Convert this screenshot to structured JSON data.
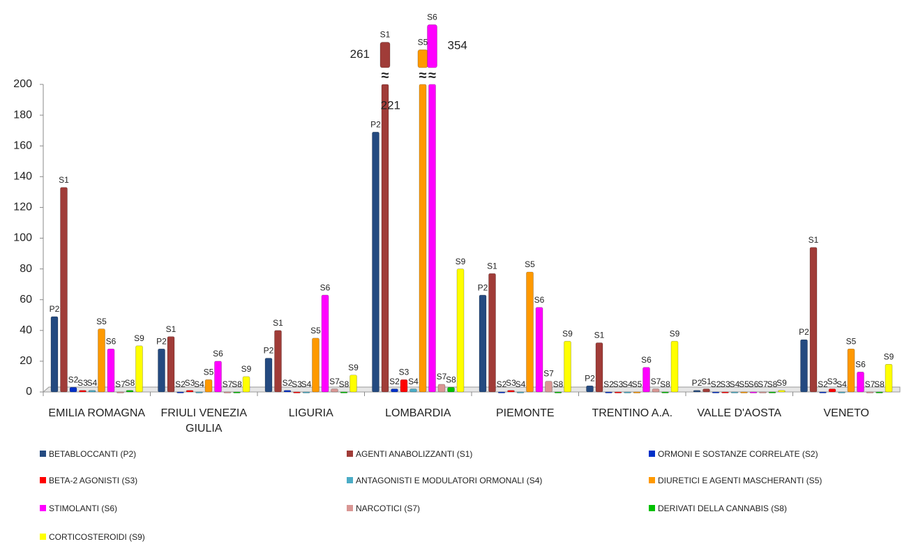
{
  "chart_data": {
    "type": "bar",
    "categories": [
      "EMILIA ROMAGNA",
      "FRIULI VENEZIA GIULIA",
      "LIGURIA",
      "LOMBARDIA",
      "PIEMONTE",
      "TRENTINO A.A.",
      "VALLE D'AOSTA",
      "VENETO"
    ],
    "ylim": [
      0,
      200
    ],
    "yticks": [
      0,
      20,
      40,
      60,
      80,
      100,
      120,
      140,
      160,
      180,
      200
    ],
    "series": [
      {
        "name": "BETABLOCCANTI (P2)",
        "label": "P2",
        "color": "#244a80",
        "values": [
          49,
          28,
          22,
          169,
          63,
          4,
          1,
          34
        ]
      },
      {
        "name": "AGENTI ANABOLIZZANTI (S1)",
        "label": "S1",
        "color": "#a03c38",
        "values": [
          133,
          36,
          40,
          261,
          77,
          32,
          2,
          94
        ],
        "value_labels": [
          null,
          null,
          null,
          "261",
          null,
          null,
          null,
          null
        ]
      },
      {
        "name": "ORMONI E SOSTANZE CORRELATE (S2)",
        "label": "S2",
        "color": "#0030c8",
        "values": [
          3,
          0,
          1,
          2,
          0,
          0,
          0,
          0
        ]
      },
      {
        "name": "BETA-2 AGONISTI (S3)",
        "label": "S3",
        "color": "#ff0000",
        "values": [
          1,
          1,
          0,
          8,
          1,
          0,
          0,
          2
        ]
      },
      {
        "name": "ANTAGONISTI E MODULATORI ORMONALI (S4)",
        "label": "S4",
        "color": "#4bacc6",
        "values": [
          1,
          0,
          0,
          2,
          0,
          0,
          0,
          0
        ]
      },
      {
        "name": "DIURETICI E AGENTI MASCHERANTI (S5)",
        "label": "S5",
        "color": "#ff9900",
        "values": [
          41,
          8,
          35,
          221,
          78,
          0,
          0,
          28
        ],
        "value_labels": [
          null,
          null,
          null,
          "221",
          null,
          null,
          null,
          null
        ]
      },
      {
        "name": "STIMOLANTI (S6)",
        "label": "S6",
        "color": "#ff00ff",
        "values": [
          28,
          20,
          63,
          354,
          55,
          16,
          0,
          13
        ],
        "value_labels": [
          null,
          null,
          null,
          "354",
          null,
          null,
          null,
          null
        ]
      },
      {
        "name": "NARCOTICI (S7)",
        "label": "S7",
        "color": "#d99694",
        "values": [
          0,
          0,
          2,
          5,
          7,
          2,
          0,
          0
        ]
      },
      {
        "name": "DERIVATI DELLA CANNABIS (S8)",
        "label": "S8",
        "color": "#00c000",
        "values": [
          1,
          0,
          0,
          3,
          0,
          0,
          0,
          0
        ]
      },
      {
        "name": "CORTICOSTEROIDI (S9)",
        "label": "S9",
        "color": "#ffff00",
        "values": [
          30,
          10,
          11,
          80,
          33,
          33,
          1,
          18
        ]
      }
    ]
  }
}
